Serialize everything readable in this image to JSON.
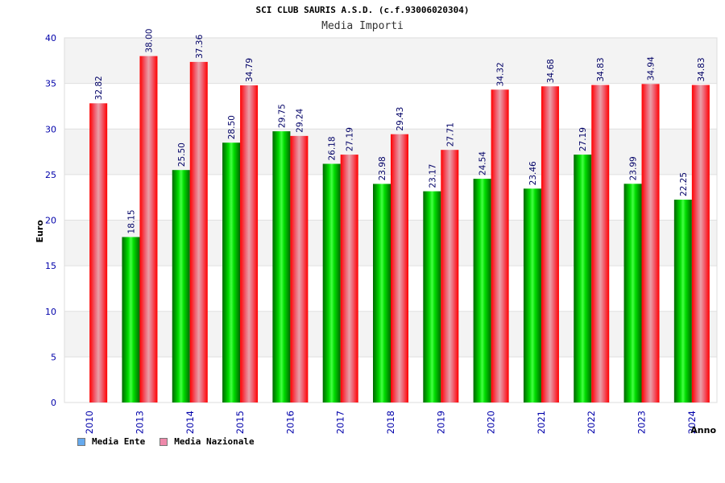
{
  "chart_data": {
    "type": "bar",
    "title": "SCI CLUB SAURIS A.S.D. (c.f.93006020304)",
    "subtitle": "Media Importi",
    "xlabel": "Anno",
    "ylabel": "Euro",
    "ylim": [
      0,
      40
    ],
    "yticks": [
      0,
      5,
      10,
      15,
      20,
      25,
      30,
      35,
      40
    ],
    "grid": true,
    "legend_position": "bottom-left",
    "categories": [
      "2010",
      "2013",
      "2014",
      "2015",
      "2016",
      "2017",
      "2018",
      "2019",
      "2020",
      "2021",
      "2022",
      "2023",
      "2024"
    ],
    "series": [
      {
        "name": "Media Ente",
        "color": "#00cc00",
        "values": [
          null,
          18.15,
          25.5,
          28.5,
          29.75,
          26.18,
          23.98,
          23.17,
          24.54,
          23.46,
          27.19,
          23.99,
          22.25
        ],
        "labels": [
          "",
          "18.15",
          "25.50",
          "28.50",
          "29.75",
          "26.18",
          "23.98",
          "23.17",
          "24.54",
          "23.46",
          "27.19",
          "23.99",
          "22.25"
        ]
      },
      {
        "name": "Media Nazionale",
        "color": "#ff1a1a",
        "values": [
          32.82,
          38.0,
          37.36,
          34.79,
          29.24,
          27.19,
          29.43,
          27.71,
          34.32,
          34.68,
          34.83,
          34.94,
          34.83
        ],
        "labels": [
          "32.82",
          "38.00",
          "37.36",
          "34.79",
          "29.24",
          "27.19",
          "29.43",
          "27.71",
          "34.32",
          "34.68",
          "34.83",
          "34.94",
          "34.83"
        ]
      }
    ],
    "legend": [
      {
        "label": "Media Ente",
        "color": "#66aaee"
      },
      {
        "label": "Media Nazionale",
        "color": "#ee88aa"
      }
    ]
  }
}
